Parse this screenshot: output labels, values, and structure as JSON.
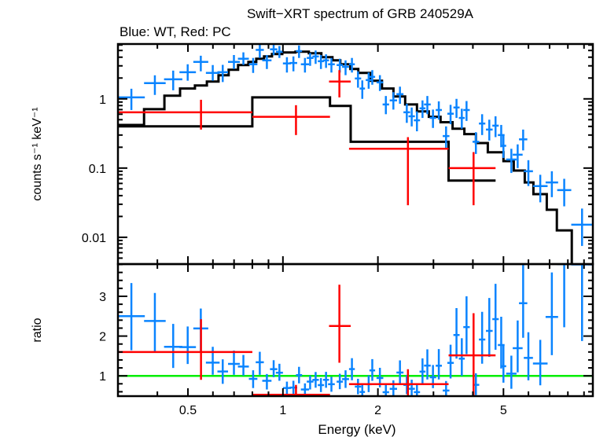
{
  "chart_data": {
    "type": "scatter",
    "title": "Swift−XRT spectrum of GRB 240529A",
    "subtitle": "Blue: WT, Red: PC",
    "xlabel": "Energy (keV)",
    "xscale": "log",
    "xlim": [
      0.3,
      9.6
    ],
    "x_ticks": [
      {
        "v": 0.5,
        "label": "0.5"
      },
      {
        "v": 1,
        "label": "1"
      },
      {
        "v": 2,
        "label": "2"
      },
      {
        "v": 5,
        "label": "5"
      }
    ],
    "x_minor": [
      0.3,
      0.4,
      0.6,
      0.7,
      0.8,
      0.9,
      3,
      4,
      6,
      7,
      8,
      9
    ],
    "colors": {
      "WT": "#0a84ff",
      "PC": "#ff0000",
      "model": "#000000",
      "unity": "#00ee00"
    },
    "top_panel": {
      "ylabel": "counts s⁻¹ keV⁻¹",
      "yscale": "log",
      "ylim": [
        0.0041,
        6.2
      ],
      "y_ticks": [
        {
          "v": 1,
          "label": "1"
        },
        {
          "v": 0.1,
          "label": "0.1"
        },
        {
          "v": 0.01,
          "label": "0.01"
        }
      ]
    },
    "bottom_panel": {
      "ylabel": "ratio",
      "yscale": "linear",
      "ylim": [
        0.49,
        3.81
      ],
      "y_ticks": [
        {
          "v": 1,
          "label": "1"
        },
        {
          "v": 2,
          "label": "2"
        },
        {
          "v": 3,
          "label": "3"
        }
      ],
      "reference_line": 1
    },
    "series": [
      {
        "name": "WT",
        "points_format": "[E_lo, E_hi, flux, flux_lo, flux_hi]",
        "points": [
          [
            0.3,
            0.365,
            1.05,
            0.69,
            1.4
          ],
          [
            0.363,
            0.425,
            1.69,
            1.14,
            2.19
          ],
          [
            0.42,
            0.48,
            1.92,
            1.33,
            2.56
          ],
          [
            0.47,
            0.53,
            2.43,
            1.83,
            3.16
          ],
          [
            0.52,
            0.58,
            3.42,
            2.5,
            4.2
          ],
          [
            0.57,
            0.63,
            2.37,
            1.83,
            3.08
          ],
          [
            0.62,
            0.67,
            2.43,
            1.75,
            3.1
          ],
          [
            0.67,
            0.73,
            3.42,
            2.7,
            4.3
          ],
          [
            0.72,
            0.78,
            3.8,
            3.1,
            4.7
          ],
          [
            0.78,
            0.83,
            3.16,
            2.37,
            3.9
          ],
          [
            0.82,
            0.87,
            5.1,
            3.9,
            6.1
          ],
          [
            0.86,
            0.92,
            3.6,
            2.7,
            4.3
          ],
          [
            0.91,
            0.96,
            5.2,
            4.3,
            6.2
          ],
          [
            0.95,
            1.0,
            4.8,
            3.9,
            5.8
          ],
          [
            1.0,
            1.06,
            3.25,
            2.4,
            4.0
          ],
          [
            1.05,
            1.11,
            3.3,
            2.5,
            4.1
          ],
          [
            1.1,
            1.15,
            4.9,
            3.9,
            5.9
          ],
          [
            1.14,
            1.21,
            3.16,
            2.4,
            3.9
          ],
          [
            1.19,
            1.25,
            3.9,
            3.0,
            4.6
          ],
          [
            1.24,
            1.3,
            4.1,
            3.2,
            5.0
          ],
          [
            1.29,
            1.35,
            3.5,
            2.7,
            4.3
          ],
          [
            1.34,
            1.4,
            3.6,
            2.8,
            4.4
          ],
          [
            1.39,
            1.46,
            3.16,
            2.4,
            3.9
          ],
          [
            1.48,
            1.55,
            3.08,
            2.4,
            3.8
          ],
          [
            1.54,
            1.62,
            2.9,
            2.2,
            3.6
          ],
          [
            1.62,
            1.69,
            3.16,
            2.4,
            3.9
          ],
          [
            1.69,
            1.77,
            1.97,
            1.45,
            2.5
          ],
          [
            1.75,
            1.82,
            1.41,
            1.0,
            1.85
          ],
          [
            1.83,
            1.91,
            1.87,
            1.4,
            2.4
          ],
          [
            1.88,
            1.96,
            2.08,
            1.6,
            2.6
          ],
          [
            1.98,
            2.08,
            1.73,
            1.3,
            2.2
          ],
          [
            2.07,
            2.17,
            0.83,
            0.6,
            1.1
          ],
          [
            2.18,
            2.3,
            0.95,
            0.7,
            1.25
          ],
          [
            2.29,
            2.41,
            1.17,
            0.85,
            1.5
          ],
          [
            2.41,
            2.53,
            0.64,
            0.45,
            0.85
          ],
          [
            2.5,
            2.62,
            0.56,
            0.4,
            0.75
          ],
          [
            2.6,
            2.72,
            0.49,
            0.34,
            0.66
          ],
          [
            2.71,
            2.83,
            0.73,
            0.53,
            0.95
          ],
          [
            2.8,
            2.94,
            0.83,
            0.6,
            1.1
          ],
          [
            2.92,
            3.06,
            0.53,
            0.38,
            0.7
          ],
          [
            3.05,
            3.19,
            0.69,
            0.5,
            0.92
          ],
          [
            3.21,
            3.37,
            0.29,
            0.19,
            0.4
          ],
          [
            3.32,
            3.48,
            0.61,
            0.43,
            0.82
          ],
          [
            3.47,
            3.63,
            0.75,
            0.53,
            1.0
          ],
          [
            3.61,
            3.77,
            0.53,
            0.37,
            0.72
          ],
          [
            3.73,
            3.91,
            0.69,
            0.48,
            0.93
          ],
          [
            3.99,
            4.19,
            0.24,
            0.16,
            0.33
          ],
          [
            4.18,
            4.38,
            0.44,
            0.3,
            0.6
          ],
          [
            4.4,
            4.62,
            0.36,
            0.25,
            0.5
          ],
          [
            4.61,
            4.83,
            0.41,
            0.28,
            0.56
          ],
          [
            4.8,
            5.04,
            0.3,
            0.2,
            0.42
          ],
          [
            4.9,
            5.1,
            0.21,
            0.14,
            0.3
          ],
          [
            5.1,
            5.5,
            0.133,
            0.085,
            0.19
          ],
          [
            5.35,
            5.75,
            0.156,
            0.1,
            0.22
          ],
          [
            5.6,
            5.95,
            0.26,
            0.18,
            0.36
          ],
          [
            5.8,
            6.2,
            0.09,
            0.055,
            0.13
          ],
          [
            6.2,
            6.9,
            0.055,
            0.032,
            0.08
          ],
          [
            6.8,
            7.45,
            0.062,
            0.038,
            0.09
          ],
          [
            7.4,
            8.2,
            0.048,
            0.028,
            0.07
          ],
          [
            8.2,
            9.6,
            0.0152,
            0.0075,
            0.026
          ]
        ],
        "model": {
          "edges": [
            0.3,
            0.363,
            0.421,
            0.472,
            0.526,
            0.574,
            0.625,
            0.673,
            0.721,
            0.777,
            0.823,
            0.871,
            0.923,
            0.995,
            1.096,
            1.208,
            1.324,
            1.435,
            1.52,
            1.636,
            1.733,
            1.89,
            2.06,
            2.24,
            2.44,
            2.66,
            2.9,
            3.16,
            3.45,
            3.76,
            4.09,
            4.46,
            5.0,
            5.39,
            5.84,
            6.22,
            6.86,
            7.38,
            8.23,
            9.6
          ],
          "values": [
            0.42,
            0.71,
            1.11,
            1.41,
            1.56,
            1.78,
            2.19,
            2.63,
            3.08,
            3.42,
            3.8,
            4.11,
            4.45,
            4.68,
            4.81,
            4.56,
            4.0,
            3.61,
            3.16,
            2.7,
            2.37,
            1.83,
            1.41,
            1.08,
            0.83,
            0.66,
            0.55,
            0.46,
            0.37,
            0.31,
            0.23,
            0.169,
            0.126,
            0.092,
            0.062,
            0.042,
            0.025,
            0.0126,
            0.004
          ]
        }
      },
      {
        "name": "PC",
        "points_format": "[E, E_lo, E_hi, flux, flux_lo, flux_hi]",
        "points": [
          [
            0.55,
            0.3,
            0.8,
            0.64,
            0.36,
            0.97
          ],
          [
            1.1,
            0.8,
            1.41,
            0.55,
            0.3,
            0.81
          ],
          [
            1.51,
            1.4,
            1.64,
            1.78,
            1.05,
            2.6
          ],
          [
            2.49,
            1.62,
            3.35,
            0.19,
            0.029,
            0.28
          ],
          [
            4.02,
            3.35,
            4.72,
            0.1,
            0.029,
            0.17
          ]
        ],
        "model": {
          "edges": [
            0.3,
            0.8,
            1.41,
            1.64,
            3.35,
            4.72
          ],
          "values": [
            0.4,
            1.05,
            0.79,
            0.24,
            0.066
          ]
        }
      }
    ]
  }
}
